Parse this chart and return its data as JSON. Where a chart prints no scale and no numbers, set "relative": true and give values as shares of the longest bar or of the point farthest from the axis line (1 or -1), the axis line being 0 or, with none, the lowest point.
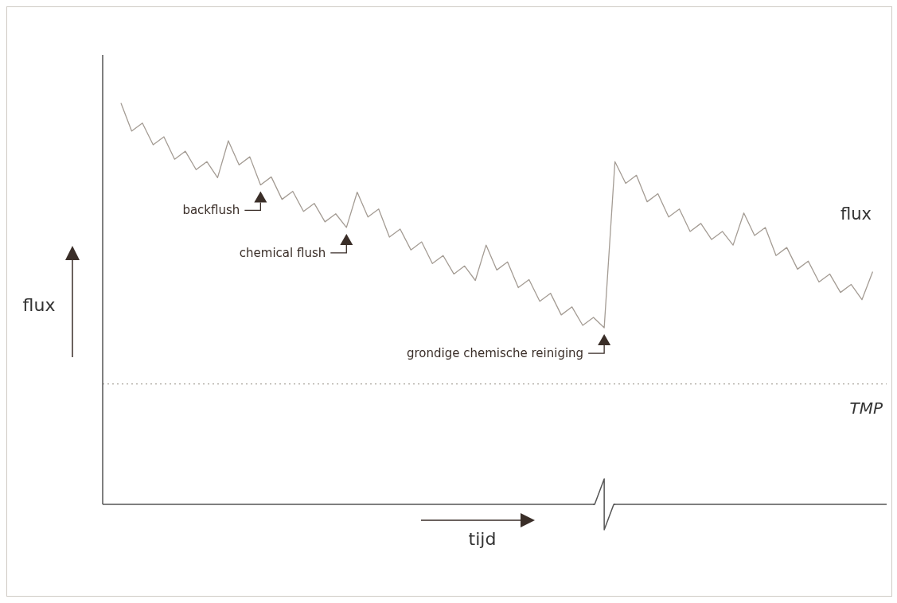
{
  "chart_data": {
    "type": "line",
    "relative": true,
    "xlabel": "tijd",
    "ylabel": "flux",
    "categories": [
      null,
      null,
      null,
      null,
      null,
      null,
      null,
      null,
      null,
      null,
      null,
      null,
      null,
      null,
      null,
      null,
      null,
      null,
      null,
      null,
      null,
      null,
      null,
      null,
      null,
      null,
      null,
      null,
      null,
      null,
      null,
      null,
      null,
      null,
      null,
      null,
      null,
      null,
      null,
      null,
      null,
      null,
      null,
      null,
      null,
      null,
      null,
      null,
      null,
      null,
      null,
      null,
      null,
      null,
      null,
      null,
      null,
      null,
      null,
      null,
      null,
      null,
      null,
      null,
      null,
      null,
      null,
      null,
      null,
      null,
      null
    ],
    "series": [
      {
        "name": "flux",
        "color": "#a49c94",
        "values": [
          1.0,
          0.93,
          0.95,
          0.896,
          0.916,
          0.86,
          0.88,
          0.834,
          0.854,
          0.814,
          0.906,
          0.846,
          0.866,
          0.796,
          0.816,
          0.76,
          0.78,
          0.73,
          0.75,
          0.704,
          0.724,
          0.69,
          0.778,
          0.716,
          0.736,
          0.666,
          0.686,
          0.634,
          0.654,
          0.6,
          0.62,
          0.574,
          0.594,
          0.558,
          0.646,
          0.584,
          0.604,
          0.54,
          0.56,
          0.506,
          0.526,
          0.472,
          0.492,
          0.446,
          0.466,
          0.44,
          0.854,
          0.8,
          0.82,
          0.754,
          0.774,
          0.716,
          0.736,
          0.68,
          0.7,
          0.66,
          0.68,
          0.646,
          0.726,
          0.67,
          0.69,
          0.62,
          0.64,
          0.586,
          0.606,
          0.554,
          0.574,
          0.528,
          0.548,
          0.51,
          0.58
        ]
      }
    ],
    "ref_lines": [
      {
        "axis": "y",
        "value": 0.3,
        "label": "TMP",
        "color": "#a8a29a",
        "line_style": "dotted"
      }
    ],
    "annotations": [
      "backflush",
      "chemical flush",
      "grondige chemische reiniging"
    ],
    "grid": false,
    "legend": false,
    "marker": "none",
    "line_style": "solid"
  }
}
